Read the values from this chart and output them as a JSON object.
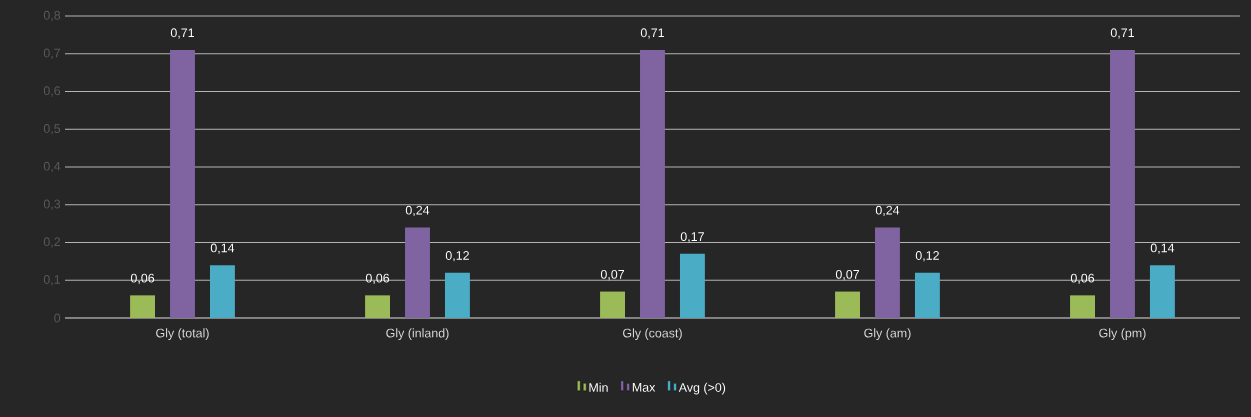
{
  "chart_data": {
    "type": "bar",
    "categories": [
      "Gly (total)",
      "Gly (inland)",
      "Gly (coast)",
      "Gly (am)",
      "Gly (pm)"
    ],
    "series": [
      {
        "name": "Min",
        "color": "#9bbb59",
        "values": [
          0.06,
          0.06,
          0.07,
          0.07,
          0.06
        ],
        "value_labels": [
          "0,06",
          "0,06",
          "0,07",
          "0,07",
          "0,06"
        ]
      },
      {
        "name": "Max",
        "color": "#8064a2",
        "values": [
          0.71,
          0.24,
          0.71,
          0.24,
          0.71
        ],
        "value_labels": [
          "0,71",
          "0,24",
          "0,71",
          "0,24",
          "0,71"
        ]
      },
      {
        "name": "Avg (>0)",
        "color": "#4bacc6",
        "values": [
          0.14,
          0.12,
          0.17,
          0.12,
          0.14
        ],
        "value_labels": [
          "0,14",
          "0,12",
          "0,17",
          "0,12",
          "0,14"
        ]
      }
    ],
    "ylim": [
      0,
      0.8
    ],
    "yticks": [
      0,
      {
        "value": 0.1,
        "label": "0,1"
      },
      {
        "value": 0.2,
        "label": "0,2"
      },
      {
        "value": 0.3,
        "label": "0,3"
      },
      {
        "value": 0.4,
        "label": "0,4"
      },
      {
        "value": 0.5,
        "label": "0,5"
      },
      {
        "value": 0.6,
        "label": "0,6"
      },
      {
        "value": 0.7,
        "label": "0,7"
      },
      {
        "value": 0.8,
        "label": "0,8"
      }
    ],
    "grid": "y",
    "legend": "bottom"
  }
}
